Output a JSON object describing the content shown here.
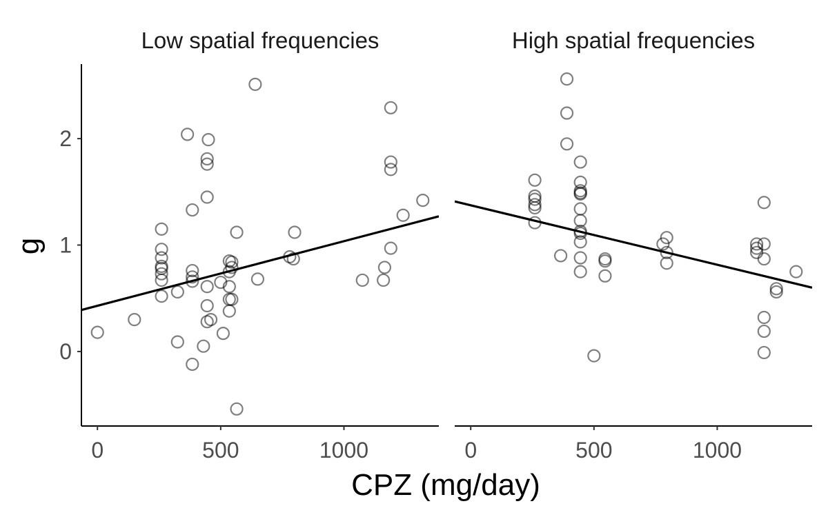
{
  "chart_data": {
    "type": "scatter",
    "xlabel": "CPZ (mg/day)",
    "ylabel": "g",
    "xlim": [
      -65,
      1385
    ],
    "ylim": [
      -0.7,
      2.7
    ],
    "x_ticks": [
      0,
      500,
      1000
    ],
    "y_ticks": [
      0,
      1,
      2
    ],
    "grid": false,
    "point_style": "open-circle",
    "point_color": "#000000",
    "point_opacity": 0.5,
    "line_color": "#000000",
    "panels": [
      {
        "title": "Low spatial frequencies",
        "fit_line": [
          {
            "x": -65,
            "y": 0.39
          },
          {
            "x": 1385,
            "y": 1.27
          }
        ],
        "points": [
          {
            "x": 0,
            "y": 0.18
          },
          {
            "x": 150,
            "y": 0.3
          },
          {
            "x": 260,
            "y": 1.15
          },
          {
            "x": 260,
            "y": 0.96
          },
          {
            "x": 260,
            "y": 0.88
          },
          {
            "x": 260,
            "y": 0.8
          },
          {
            "x": 260,
            "y": 0.78
          },
          {
            "x": 260,
            "y": 0.73
          },
          {
            "x": 260,
            "y": 0.67
          },
          {
            "x": 260,
            "y": 0.52
          },
          {
            "x": 325,
            "y": 0.56
          },
          {
            "x": 325,
            "y": 0.09
          },
          {
            "x": 365,
            "y": 2.04
          },
          {
            "x": 385,
            "y": 1.33
          },
          {
            "x": 385,
            "y": 0.76
          },
          {
            "x": 385,
            "y": 0.7
          },
          {
            "x": 385,
            "y": 0.66
          },
          {
            "x": 385,
            "y": -0.12
          },
          {
            "x": 430,
            "y": 0.05
          },
          {
            "x": 445,
            "y": 1.81
          },
          {
            "x": 445,
            "y": 1.76
          },
          {
            "x": 445,
            "y": 1.45
          },
          {
            "x": 445,
            "y": 0.61
          },
          {
            "x": 445,
            "y": 0.43
          },
          {
            "x": 445,
            "y": 0.28
          },
          {
            "x": 450,
            "y": 1.99
          },
          {
            "x": 460,
            "y": 0.3
          },
          {
            "x": 500,
            "y": 0.65
          },
          {
            "x": 510,
            "y": 0.17
          },
          {
            "x": 535,
            "y": 0.85
          },
          {
            "x": 535,
            "y": 0.75
          },
          {
            "x": 535,
            "y": 0.61
          },
          {
            "x": 535,
            "y": 0.49
          },
          {
            "x": 535,
            "y": 0.38
          },
          {
            "x": 545,
            "y": 0.84
          },
          {
            "x": 545,
            "y": 0.79
          },
          {
            "x": 545,
            "y": 0.49
          },
          {
            "x": 565,
            "y": 1.12
          },
          {
            "x": 565,
            "y": -0.54
          },
          {
            "x": 640,
            "y": 2.51
          },
          {
            "x": 650,
            "y": 0.68
          },
          {
            "x": 780,
            "y": 0.89
          },
          {
            "x": 795,
            "y": 0.87
          },
          {
            "x": 800,
            "y": 1.12
          },
          {
            "x": 1075,
            "y": 0.67
          },
          {
            "x": 1160,
            "y": 0.67
          },
          {
            "x": 1165,
            "y": 0.79
          },
          {
            "x": 1190,
            "y": 2.29
          },
          {
            "x": 1190,
            "y": 1.78
          },
          {
            "x": 1190,
            "y": 1.71
          },
          {
            "x": 1190,
            "y": 0.97
          },
          {
            "x": 1240,
            "y": 1.28
          },
          {
            "x": 1320,
            "y": 1.42
          }
        ]
      },
      {
        "title": "High spatial frequencies",
        "fit_line": [
          {
            "x": -65,
            "y": 1.41
          },
          {
            "x": 1385,
            "y": 0.6
          }
        ],
        "points": [
          {
            "x": 260,
            "y": 1.61
          },
          {
            "x": 260,
            "y": 1.46
          },
          {
            "x": 260,
            "y": 1.43
          },
          {
            "x": 260,
            "y": 1.38
          },
          {
            "x": 260,
            "y": 1.35
          },
          {
            "x": 260,
            "y": 1.21
          },
          {
            "x": 365,
            "y": 0.9
          },
          {
            "x": 390,
            "y": 2.56
          },
          {
            "x": 390,
            "y": 2.24
          },
          {
            "x": 390,
            "y": 1.95
          },
          {
            "x": 445,
            "y": 1.78
          },
          {
            "x": 445,
            "y": 1.59
          },
          {
            "x": 445,
            "y": 1.51
          },
          {
            "x": 445,
            "y": 1.49
          },
          {
            "x": 445,
            "y": 1.48
          },
          {
            "x": 445,
            "y": 1.34
          },
          {
            "x": 445,
            "y": 1.23
          },
          {
            "x": 445,
            "y": 1.13
          },
          {
            "x": 445,
            "y": 1.11
          },
          {
            "x": 445,
            "y": 1.03
          },
          {
            "x": 445,
            "y": 0.88
          },
          {
            "x": 445,
            "y": 0.75
          },
          {
            "x": 500,
            "y": -0.04
          },
          {
            "x": 545,
            "y": 0.87
          },
          {
            "x": 545,
            "y": 0.85
          },
          {
            "x": 545,
            "y": 0.71
          },
          {
            "x": 780,
            "y": 1.01
          },
          {
            "x": 795,
            "y": 1.07
          },
          {
            "x": 795,
            "y": 0.93
          },
          {
            "x": 795,
            "y": 0.83
          },
          {
            "x": 1160,
            "y": 1.01
          },
          {
            "x": 1160,
            "y": 0.97
          },
          {
            "x": 1160,
            "y": 0.93
          },
          {
            "x": 1190,
            "y": 1.4
          },
          {
            "x": 1190,
            "y": 1.01
          },
          {
            "x": 1190,
            "y": 0.87
          },
          {
            "x": 1190,
            "y": 0.32
          },
          {
            "x": 1190,
            "y": 0.19
          },
          {
            "x": 1190,
            "y": -0.01
          },
          {
            "x": 1240,
            "y": 0.59
          },
          {
            "x": 1240,
            "y": 0.56
          },
          {
            "x": 1320,
            "y": 0.75
          }
        ]
      }
    ]
  }
}
